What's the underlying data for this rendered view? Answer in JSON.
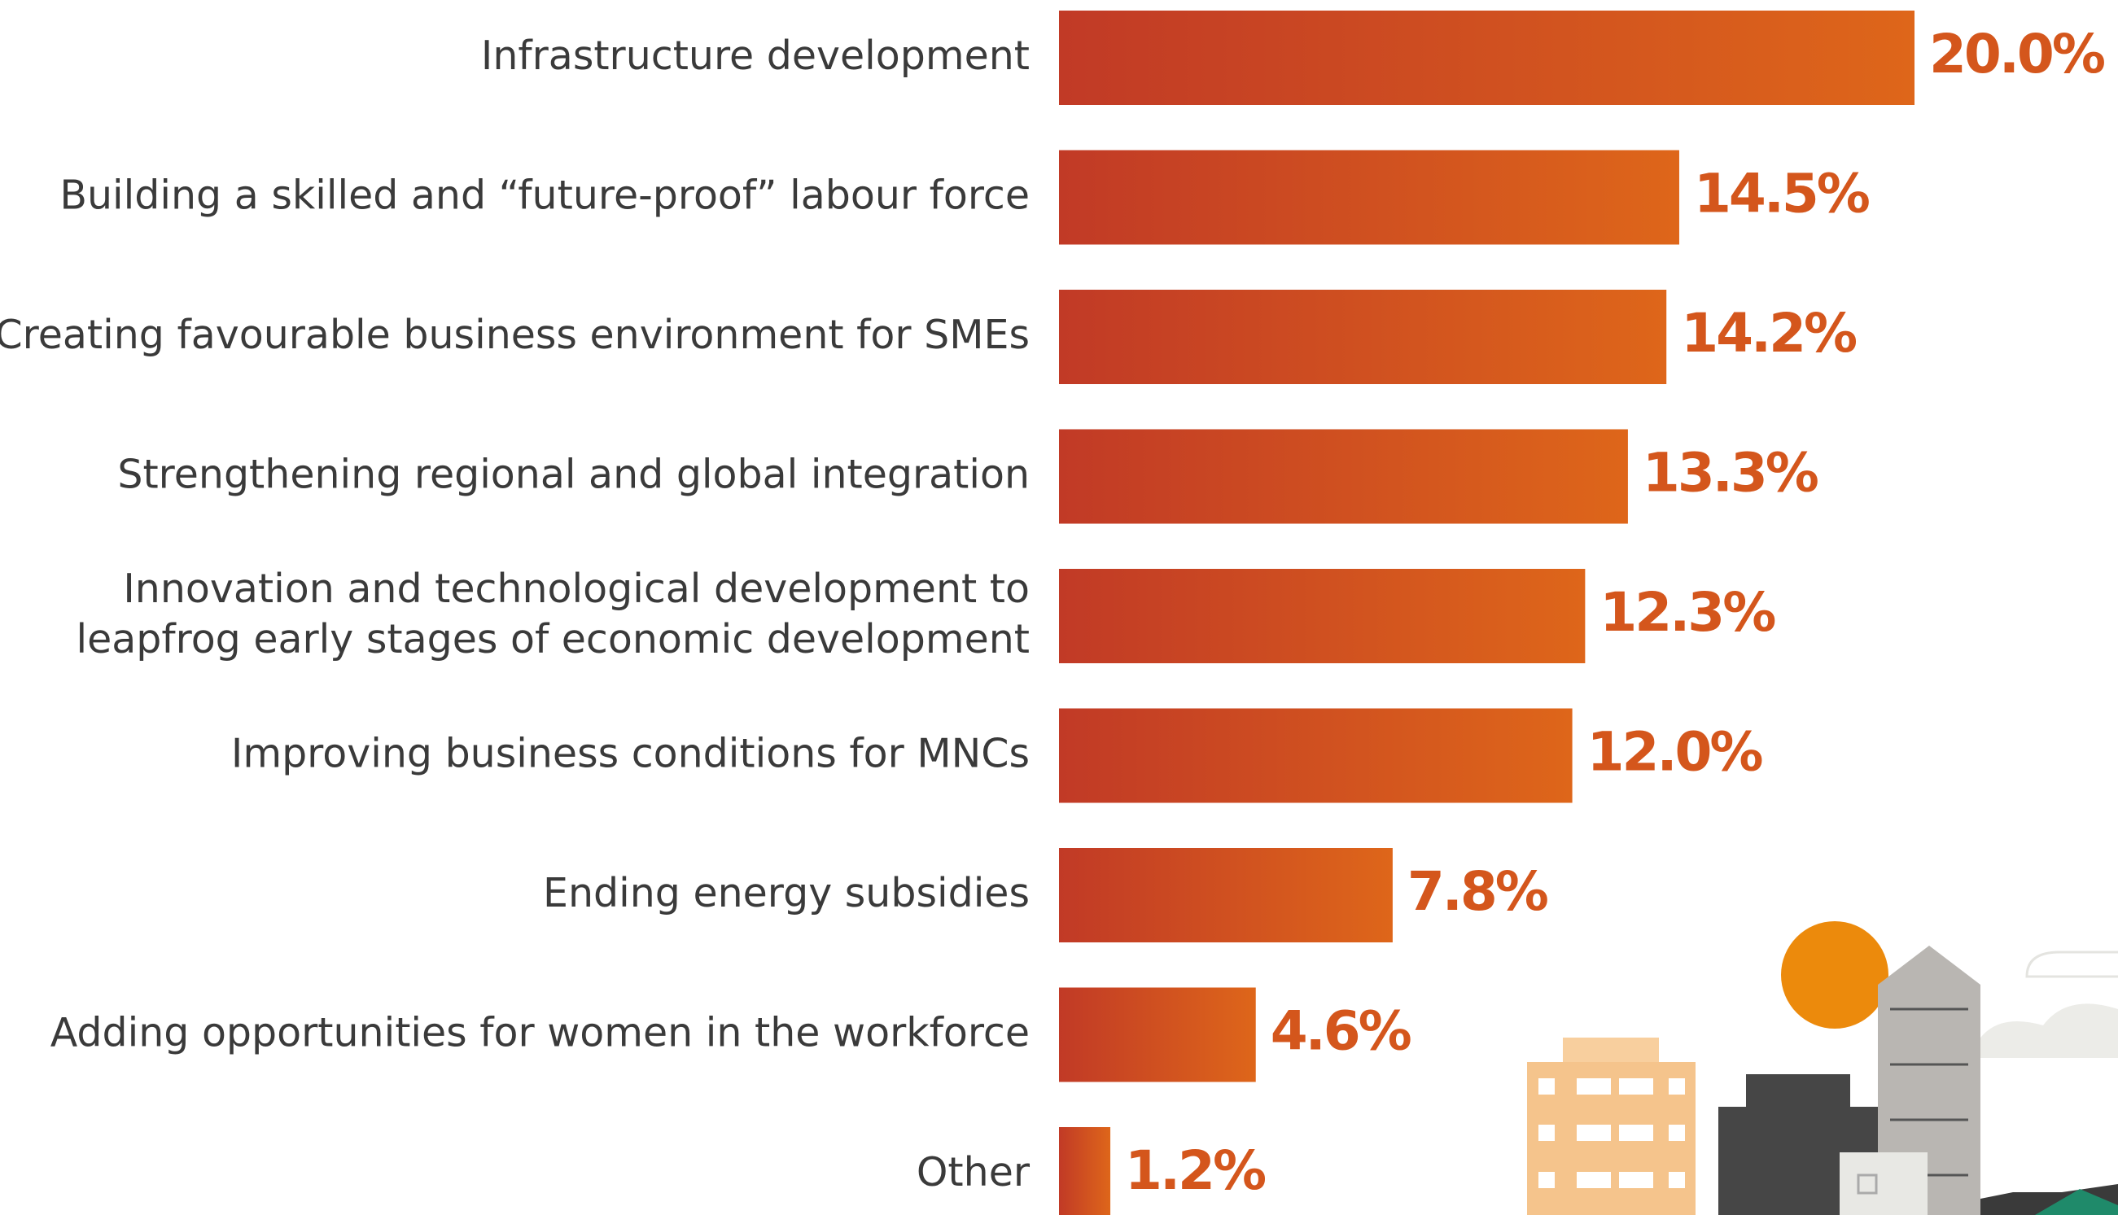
{
  "chart_data": {
    "type": "bar",
    "orientation": "horizontal",
    "categories": [
      "Infrastructure development",
      "Building a skilled and “future-proof” labour force",
      "Creating favourable business environment for SMEs",
      "Strengthening regional and global integration",
      "Innovation and technological development to\nleapfrog early stages of economic development",
      "Improving business conditions for MNCs",
      "Ending energy subsidies",
      "Adding opportunities for women in the workforce",
      "Other"
    ],
    "values": [
      20.0,
      14.5,
      14.2,
      13.3,
      12.3,
      12.0,
      7.8,
      4.6,
      1.2
    ],
    "value_labels": [
      "20.0%",
      "14.5%",
      "14.2%",
      "13.3%",
      "12.3%",
      "12.0%",
      "7.8%",
      "4.6%",
      "1.2%"
    ],
    "gradient": [
      "#c13a26",
      "#de661a"
    ],
    "label_color": "#d4561c"
  }
}
